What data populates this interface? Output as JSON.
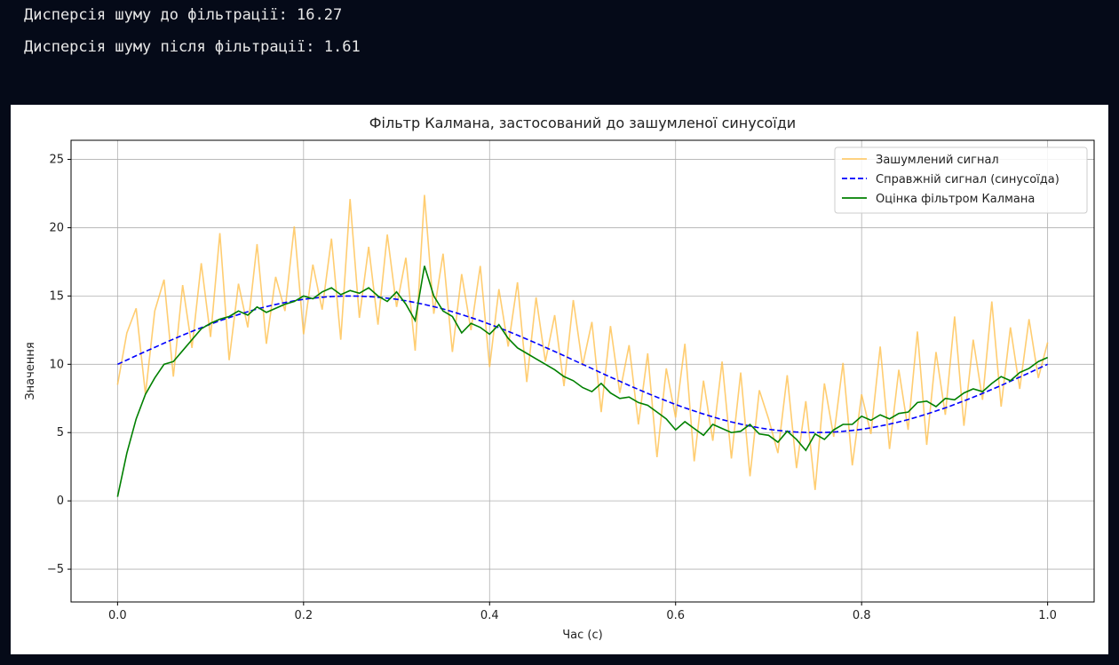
{
  "console": {
    "lines": [
      "Дисперсія шуму до фільтрації: 16.27",
      "Дисперсія шуму після фільтрації: 1.61"
    ]
  },
  "chart_data": {
    "type": "line",
    "title": "Фільтр Калмана, застосований до зашумленої синусоїди",
    "x_label": "Час (с)",
    "y_label": "Значення",
    "xlim": [
      -0.05,
      1.05
    ],
    "ylim": [
      -7.4,
      26.4
    ],
    "xticks": [
      {
        "value": 0,
        "label": "0.0"
      },
      0.2,
      0.4,
      0.6,
      0.8,
      {
        "value": 1,
        "label": "1.0"
      }
    ],
    "yticks": [
      {
        "value": -5,
        "label": "−5"
      },
      0,
      5,
      10,
      15,
      20,
      25
    ],
    "grid": true,
    "legend": "upper right",
    "x": [
      0,
      0.01,
      0.02,
      0.03,
      0.04,
      0.05,
      0.06,
      0.07,
      0.08,
      0.09,
      0.1,
      0.11,
      0.12,
      0.13,
      0.14,
      0.15,
      0.16,
      0.17,
      0.18,
      0.19,
      0.2,
      0.21,
      0.22,
      0.23,
      0.24,
      0.25,
      0.26,
      0.27,
      0.28,
      0.29,
      0.3,
      0.31,
      0.32,
      0.33,
      0.34,
      0.35,
      0.36,
      0.37,
      0.38,
      0.39,
      0.4,
      0.41,
      0.42,
      0.43,
      0.44,
      0.45,
      0.46,
      0.47,
      0.48,
      0.49,
      0.5,
      0.51,
      0.52,
      0.53,
      0.54,
      0.55,
      0.56,
      0.57,
      0.58,
      0.59,
      0.6,
      0.61,
      0.62,
      0.63,
      0.64,
      0.65,
      0.66,
      0.67,
      0.68,
      0.69,
      0.7,
      0.71,
      0.72,
      0.73,
      0.74,
      0.75,
      0.76,
      0.77,
      0.78,
      0.79,
      0.8,
      0.81,
      0.82,
      0.83,
      0.84,
      0.85,
      0.86,
      0.87,
      0.88,
      0.89,
      0.9,
      0.91,
      0.92,
      0.93,
      0.94,
      0.95,
      0.96,
      0.97,
      0.98,
      0.99,
      1
    ],
    "series": [
      {
        "name": "Зашумлений сигнал",
        "color": "#ffc04d",
        "alpha": 0.8,
        "dashed": false,
        "values": [
          8.5,
          12.3,
          14.1,
          7.8,
          13.9,
          16.2,
          9.1,
          15.8,
          11.2,
          17.4,
          12.0,
          19.6,
          10.3,
          15.9,
          12.7,
          18.8,
          11.5,
          16.4,
          13.9,
          20.1,
          12.2,
          17.3,
          14.0,
          19.2,
          11.8,
          22.1,
          13.4,
          18.6,
          12.9,
          19.5,
          14.2,
          17.8,
          11.0,
          22.4,
          13.7,
          18.1,
          10.9,
          16.6,
          12.5,
          17.2,
          9.8,
          15.5,
          11.3,
          16.0,
          8.7,
          14.9,
          10.2,
          13.6,
          8.4,
          14.7,
          9.9,
          13.1,
          6.5,
          12.8,
          7.9,
          11.4,
          5.6,
          10.8,
          3.2,
          9.7,
          6.1,
          11.5,
          2.9,
          8.8,
          4.4,
          10.2,
          3.1,
          9.4,
          1.8,
          8.1,
          6.0,
          3.5,
          9.2,
          2.4,
          7.3,
          0.8,
          8.6,
          4.7,
          10.1,
          2.6,
          7.8,
          4.9,
          11.3,
          3.8,
          9.6,
          5.2,
          12.4,
          4.1,
          10.9,
          6.3,
          13.5,
          5.5,
          11.8,
          7.4,
          14.6,
          6.9,
          12.7,
          8.2,
          13.3,
          9.0,
          11.6
        ]
      },
      {
        "name": "Справжній сигнал (синусоїда)",
        "color": "#0000ff",
        "alpha": 1,
        "dashed": true,
        "values": [
          10,
          10.31,
          10.63,
          10.94,
          11.24,
          11.55,
          11.84,
          12.13,
          12.41,
          12.68,
          12.94,
          13.19,
          13.42,
          13.64,
          13.85,
          14.05,
          14.22,
          14.38,
          14.52,
          14.65,
          14.76,
          14.84,
          14.91,
          14.96,
          14.99,
          15,
          14.99,
          14.96,
          14.91,
          14.84,
          14.76,
          14.65,
          14.52,
          14.38,
          14.22,
          14.05,
          13.85,
          13.64,
          13.42,
          13.19,
          12.94,
          12.68,
          12.41,
          12.13,
          11.84,
          11.55,
          11.24,
          10.94,
          10.63,
          10.31,
          10,
          9.69,
          9.37,
          9.06,
          8.76,
          8.45,
          8.16,
          7.87,
          7.59,
          7.32,
          7.06,
          6.81,
          6.58,
          6.36,
          6.15,
          5.95,
          5.78,
          5.62,
          5.48,
          5.35,
          5.24,
          5.16,
          5.09,
          5.04,
          5.01,
          5,
          5.01,
          5.04,
          5.09,
          5.16,
          5.24,
          5.35,
          5.48,
          5.62,
          5.78,
          5.95,
          6.15,
          6.36,
          6.58,
          6.81,
          7.06,
          7.32,
          7.59,
          7.87,
          8.16,
          8.45,
          8.76,
          9.06,
          9.37,
          9.69,
          10
        ]
      },
      {
        "name": "Оцінка фільтром Калмана",
        "color": "#008000",
        "alpha": 1,
        "dashed": false,
        "values": [
          0.3,
          3.5,
          6.0,
          7.8,
          9.0,
          10.0,
          10.2,
          11.0,
          11.8,
          12.6,
          13.0,
          13.3,
          13.5,
          13.9,
          13.6,
          14.2,
          13.8,
          14.1,
          14.4,
          14.6,
          15.0,
          14.8,
          15.3,
          15.6,
          15.1,
          15.4,
          15.2,
          15.6,
          15.0,
          14.6,
          15.3,
          14.4,
          13.2,
          17.2,
          15.0,
          13.9,
          13.5,
          12.3,
          13.0,
          12.7,
          12.2,
          12.9,
          11.9,
          11.2,
          10.8,
          10.4,
          10.0,
          9.6,
          9.1,
          8.8,
          8.3,
          8.0,
          8.6,
          7.9,
          7.5,
          7.6,
          7.2,
          7.0,
          6.5,
          6.0,
          5.2,
          5.8,
          5.3,
          4.8,
          5.6,
          5.3,
          5.0,
          5.1,
          5.6,
          4.9,
          4.8,
          4.3,
          5.1,
          4.5,
          3.7,
          4.9,
          4.5,
          5.2,
          5.6,
          5.6,
          6.2,
          5.9,
          6.3,
          6.0,
          6.4,
          6.5,
          7.2,
          7.3,
          6.9,
          7.5,
          7.4,
          7.9,
          8.2,
          8.0,
          8.6,
          9.1,
          8.8,
          9.4,
          9.7,
          10.2,
          10.5
        ]
      }
    ]
  }
}
